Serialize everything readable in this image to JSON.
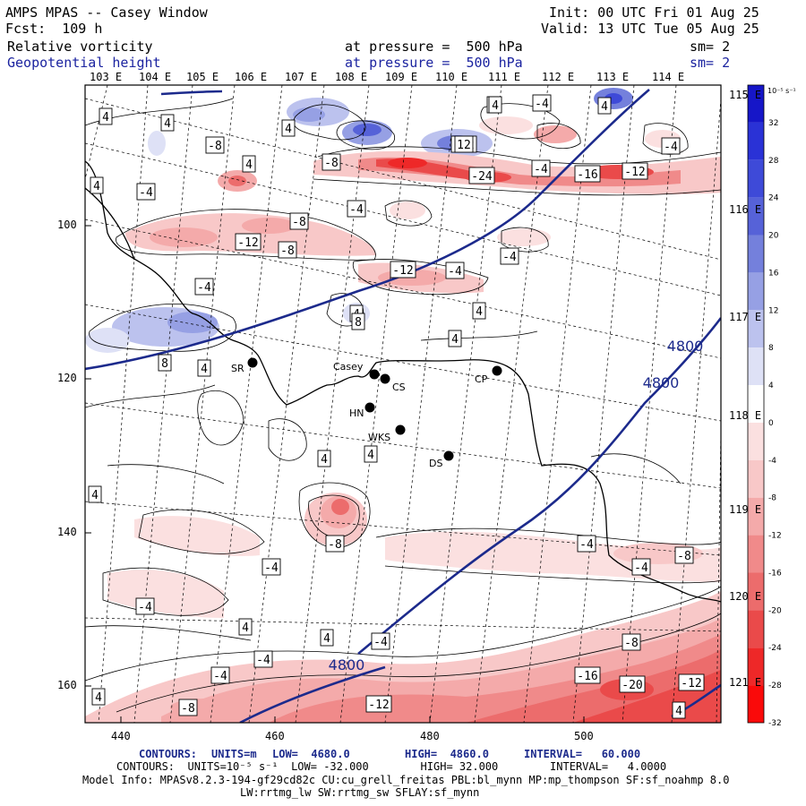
{
  "header": {
    "model_title": "AMPS MPAS -- Casey Window",
    "forecast": "Fcst:  109 h",
    "init": "Init: 00 UTC Fri 01 Aug 25",
    "valid": "Valid: 13 UTC Tue 05 Aug 25",
    "field1_name": "Relative vorticity",
    "field1_level": "at pressure =  500 hPa",
    "field1_sm": "sm= 2",
    "field2_name": "Geopotential height",
    "field2_level": "at pressure =  500 hPa",
    "field2_sm": "sm= 2"
  },
  "axes": {
    "top_labels": [
      "103 E",
      "104 E",
      "105 E",
      "106 E",
      "107 E",
      "108 E",
      "109 E",
      "110 E",
      "111 E",
      "112 E",
      "113 E",
      "114 E"
    ],
    "right_labels": [
      "115 E",
      "116 E",
      "117 E",
      "118 E",
      "119 E",
      "120 E",
      "121 E"
    ],
    "left_labels": [
      "100",
      "120",
      "140",
      "160"
    ],
    "bottom_labels": [
      "440",
      "460",
      "480",
      "500"
    ]
  },
  "colorbar": {
    "units": "10⁻⁵ s⁻¹",
    "ticks": [
      "32",
      "28",
      "24",
      "20",
      "16",
      "12",
      "8",
      "4",
      "0",
      "-4",
      "-8",
      "-12",
      "-16",
      "-20",
      "-24",
      "-28",
      "-32"
    ],
    "blue_colors": [
      "#1616c8",
      "#2a32d6",
      "#3e4ad8",
      "#5662d8",
      "#7480dc",
      "#96a0e4",
      "#bcc2ee",
      "#dee1f6"
    ],
    "red_colors": [
      "#fbe0e0",
      "#f8c8c8",
      "#f4aaaa",
      "#f08a8a",
      "#ec6c6c",
      "#ea4a4a",
      "#ee2828",
      "#fa0a0a"
    ]
  },
  "stations": [
    {
      "label": "SR"
    },
    {
      "label": "Casey"
    },
    {
      "label": "CS"
    },
    {
      "label": "CP"
    },
    {
      "label": "HN"
    },
    {
      "label": "WKS"
    },
    {
      "label": "DS"
    }
  ],
  "contour_labels": {
    "boxed": [
      "4",
      "4",
      "4",
      "4",
      "-8",
      "4",
      "-8",
      "4",
      "-4",
      "-8",
      "-4",
      "-12",
      "-4",
      "-4",
      "-4",
      "-12",
      "-8",
      "-12",
      "-4",
      "4",
      "-4",
      "8",
      "4",
      "8",
      "4",
      "4",
      "4",
      "4",
      "4",
      "-8",
      "-4",
      "-4",
      "-4",
      "4",
      "-4",
      "-4",
      "-8",
      "4",
      "4",
      "-8",
      "-4",
      "-16",
      "-20",
      "-12",
      "4",
      "4",
      "-4",
      "-8",
      "-12",
      "4",
      "-4",
      "-24",
      "-16",
      "-12",
      "12"
    ],
    "height": [
      "4800",
      "4800",
      "4800"
    ]
  },
  "footer": {
    "contours1_prefix": "CONTOURS:",
    "contours1_units": "UNITS=m",
    "contours1_low": "LOW=  4680.0",
    "contours1_high": "HIGH=  4860.0",
    "contours1_interval": "INTERVAL=   60.000",
    "contours2": "CONTOURS:  UNITS=10⁻⁵ s⁻¹  LOW= -32.000        HIGH= 32.000        INTERVAL=   4.0000",
    "model_info1": "Model Info: MPASv8.2.3-194-gf29cd82c CU:cu_grell_freitas PBL:bl_mynn MP:mp_thompson SF:sf_noahmp 8.0",
    "model_info2": "LW:rrtmg_lw SW:rrtmg_sw SFLAY:sf_mynn"
  }
}
